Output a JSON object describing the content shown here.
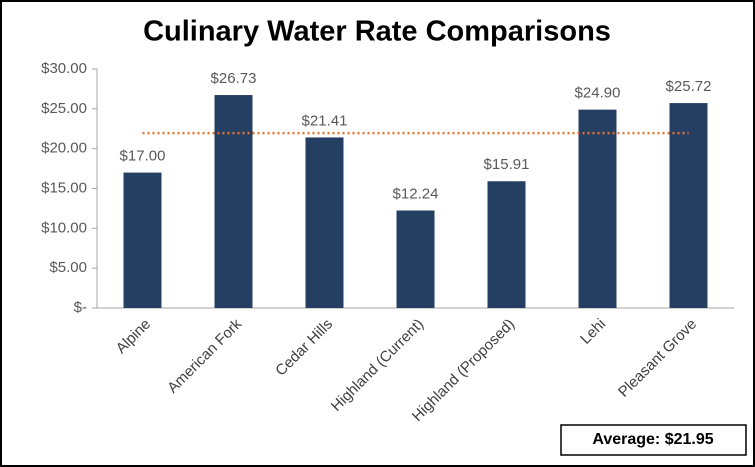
{
  "chart_data": {
    "type": "bar",
    "title": "Culinary Water Rate Comparisons",
    "categories": [
      "Alpine",
      "American Fork",
      "Cedar Hills",
      "Highland (Current)",
      "Highland (Proposed)",
      "Lehi",
      "Pleasant Grove"
    ],
    "values": [
      17.0,
      26.73,
      21.41,
      12.24,
      15.91,
      24.9,
      25.72
    ],
    "value_labels": [
      "$17.00",
      "$26.73",
      "$21.41",
      "$12.24",
      "$15.91",
      "$24.90",
      "$25.72"
    ],
    "color": "#253f63",
    "ylim": [
      0,
      30
    ],
    "yticks": [
      {
        "value": 0,
        "label": "$-"
      },
      {
        "value": 5,
        "label": "$5.00"
      },
      {
        "value": 10,
        "label": "$10.00"
      },
      {
        "value": 15,
        "label": "$15.00"
      },
      {
        "value": 20,
        "label": "$20.00"
      },
      {
        "value": 25,
        "label": "$25.00"
      },
      {
        "value": 30,
        "label": "$30.00"
      }
    ],
    "average": {
      "value": 21.95,
      "label": "Average: $21.95",
      "color": "#e97132"
    },
    "grid": false
  }
}
